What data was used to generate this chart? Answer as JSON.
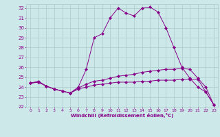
{
  "xlabel": "Windchill (Refroidissement éolien,°C)",
  "background_color": "#cce8e8",
  "grid_color": "#aacccc",
  "line_color": "#880088",
  "xlim": [
    -0.5,
    23.5
  ],
  "ylim": [
    22,
    32.4
  ],
  "yticks": [
    22,
    23,
    24,
    25,
    26,
    27,
    28,
    29,
    30,
    31,
    32
  ],
  "xticks": [
    0,
    1,
    2,
    3,
    4,
    5,
    6,
    7,
    8,
    9,
    10,
    11,
    12,
    13,
    14,
    15,
    16,
    17,
    18,
    19,
    20,
    21,
    22,
    23
  ],
  "series": [
    {
      "x": [
        0,
        1,
        2,
        3,
        4,
        5,
        6,
        7,
        8,
        9,
        10,
        11,
        12,
        13,
        14,
        15,
        16,
        17,
        18,
        19,
        20,
        21,
        22,
        23
      ],
      "y": [
        24.4,
        24.6,
        24.1,
        23.8,
        23.6,
        23.4,
        24.0,
        25.8,
        29.0,
        29.4,
        31.0,
        32.0,
        31.5,
        31.2,
        32.0,
        32.1,
        31.6,
        30.0,
        28.0,
        26.0,
        24.9,
        24.0,
        23.5,
        22.2
      ],
      "marker": "D",
      "marker_size": 2.2
    },
    {
      "x": [
        0,
        1,
        2,
        3,
        4,
        5,
        6,
        7,
        8,
        9,
        10,
        11,
        12,
        13,
        14,
        15,
        16,
        17,
        18,
        19,
        20,
        21,
        22,
        23
      ],
      "y": [
        24.4,
        24.5,
        24.1,
        23.8,
        23.6,
        23.4,
        23.9,
        24.3,
        24.6,
        24.7,
        24.9,
        25.1,
        25.2,
        25.3,
        25.5,
        25.6,
        25.7,
        25.8,
        25.8,
        25.9,
        25.8,
        24.9,
        24.0,
        22.2
      ],
      "marker": "D",
      "marker_size": 2.2
    },
    {
      "x": [
        0,
        1,
        2,
        3,
        4,
        5,
        6,
        7,
        8,
        9,
        10,
        11,
        12,
        13,
        14,
        15,
        16,
        17,
        18,
        19,
        20,
        21,
        22,
        23
      ],
      "y": [
        24.4,
        24.5,
        24.1,
        23.8,
        23.6,
        23.4,
        23.8,
        24.0,
        24.2,
        24.3,
        24.4,
        24.5,
        24.5,
        24.5,
        24.6,
        24.6,
        24.7,
        24.7,
        24.7,
        24.8,
        24.8,
        24.8,
        23.5,
        22.2
      ],
      "marker": "D",
      "marker_size": 2.2
    }
  ]
}
